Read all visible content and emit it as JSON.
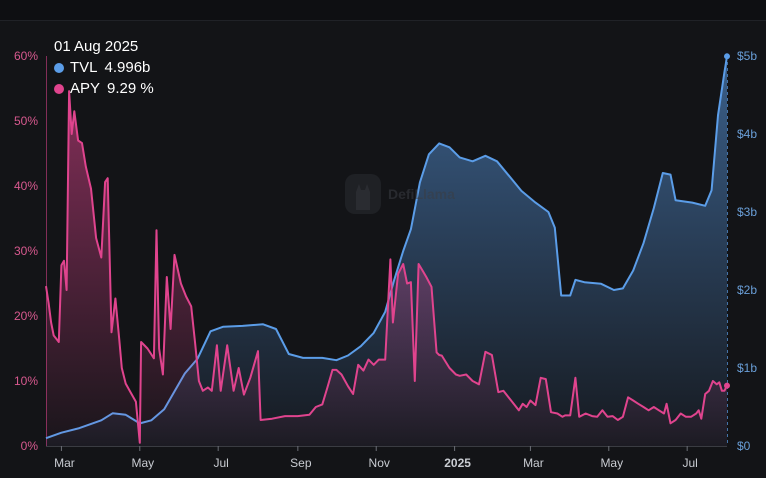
{
  "tooltip": {
    "date": "01 Aug 2025",
    "tvl_label": "TVL",
    "tvl_value": "4.996b",
    "apy_label": "APY",
    "apy_value": "9.29 %"
  },
  "watermark": {
    "text": "DefiLlama",
    "icon": "llama-logo-icon"
  },
  "colors": {
    "tvl": "#5b9de8",
    "apy": "#e0448e",
    "background": "#131417"
  },
  "chart_data": {
    "type": "line",
    "title": "",
    "x_ticks": [
      "Mar",
      "May",
      "Jul",
      "Sep",
      "Nov",
      "2025",
      "Mar",
      "May",
      "Jul"
    ],
    "y_left": {
      "series": "APY",
      "range": [
        0,
        60
      ],
      "ticks": [
        "0%",
        "10%",
        "20%",
        "30%",
        "40%",
        "50%",
        "60%"
      ]
    },
    "y_right": {
      "series": "TVL",
      "range": [
        0,
        5000000000
      ],
      "ticks": [
        "$0",
        "$1b",
        "$2b",
        "$3b",
        "$4b",
        "$5b"
      ]
    },
    "x_range": [
      "2024-02-18",
      "2025-08-01"
    ],
    "grid": false,
    "legend": "top-left",
    "series": [
      {
        "name": "TVL",
        "unit": "USD",
        "axis": "right",
        "style": "area",
        "points": [
          [
            "2024-02-18",
            100000000
          ],
          [
            "2024-03-01",
            170000000
          ],
          [
            "2024-03-15",
            230000000
          ],
          [
            "2024-04-01",
            330000000
          ],
          [
            "2024-04-10",
            420000000
          ],
          [
            "2024-04-20",
            400000000
          ],
          [
            "2024-05-01",
            290000000
          ],
          [
            "2024-05-10",
            330000000
          ],
          [
            "2024-05-20",
            470000000
          ],
          [
            "2024-05-28",
            700000000
          ],
          [
            "2024-06-05",
            930000000
          ],
          [
            "2024-06-15",
            1120000000
          ],
          [
            "2024-06-25",
            1470000000
          ],
          [
            "2024-07-05",
            1530000000
          ],
          [
            "2024-07-20",
            1540000000
          ],
          [
            "2024-08-05",
            1560000000
          ],
          [
            "2024-08-15",
            1500000000
          ],
          [
            "2024-08-25",
            1180000000
          ],
          [
            "2024-09-05",
            1130000000
          ],
          [
            "2024-09-20",
            1130000000
          ],
          [
            "2024-10-01",
            1100000000
          ],
          [
            "2024-10-10",
            1160000000
          ],
          [
            "2024-10-20",
            1280000000
          ],
          [
            "2024-10-30",
            1450000000
          ],
          [
            "2024-11-08",
            1720000000
          ],
          [
            "2024-11-15",
            2130000000
          ],
          [
            "2024-11-22",
            2500000000
          ],
          [
            "2024-11-28",
            2780000000
          ],
          [
            "2024-12-05",
            3380000000
          ],
          [
            "2024-12-12",
            3740000000
          ],
          [
            "2024-12-20",
            3880000000
          ],
          [
            "2024-12-28",
            3830000000
          ],
          [
            "2025-01-05",
            3700000000
          ],
          [
            "2025-01-15",
            3650000000
          ],
          [
            "2025-01-25",
            3720000000
          ],
          [
            "2025-02-03",
            3650000000
          ],
          [
            "2025-02-12",
            3470000000
          ],
          [
            "2025-02-22",
            3270000000
          ],
          [
            "2025-03-05",
            3120000000
          ],
          [
            "2025-03-15",
            3000000000
          ],
          [
            "2025-03-20",
            2800000000
          ],
          [
            "2025-03-25",
            1930000000
          ],
          [
            "2025-04-01",
            1930000000
          ],
          [
            "2025-04-05",
            2130000000
          ],
          [
            "2025-04-12",
            2100000000
          ],
          [
            "2025-04-25",
            2080000000
          ],
          [
            "2025-05-05",
            2000000000
          ],
          [
            "2025-05-12",
            2020000000
          ],
          [
            "2025-05-20",
            2250000000
          ],
          [
            "2025-05-28",
            2600000000
          ],
          [
            "2025-06-05",
            3050000000
          ],
          [
            "2025-06-12",
            3500000000
          ],
          [
            "2025-06-18",
            3480000000
          ],
          [
            "2025-06-22",
            3150000000
          ],
          [
            "2025-07-05",
            3120000000
          ],
          [
            "2025-07-15",
            3080000000
          ],
          [
            "2025-07-20",
            3280000000
          ],
          [
            "2025-07-25",
            4240000000
          ],
          [
            "2025-07-30",
            4790000000
          ],
          [
            "2025-08-01",
            4996000000
          ]
        ]
      },
      {
        "name": "APY",
        "unit": "%",
        "axis": "left",
        "style": "area",
        "points": [
          [
            "2024-02-18",
            24.6
          ],
          [
            "2024-02-20",
            22
          ],
          [
            "2024-02-22",
            19
          ],
          [
            "2024-02-24",
            17
          ],
          [
            "2024-02-26",
            16.5
          ],
          [
            "2024-02-28",
            16
          ],
          [
            "2024-03-01",
            27.8
          ],
          [
            "2024-03-03",
            28.5
          ],
          [
            "2024-03-05",
            24
          ],
          [
            "2024-03-07",
            54.6
          ],
          [
            "2024-03-09",
            48
          ],
          [
            "2024-03-11",
            51.5
          ],
          [
            "2024-03-14",
            47
          ],
          [
            "2024-03-17",
            46.6
          ],
          [
            "2024-03-20",
            43
          ],
          [
            "2024-03-24",
            39.6
          ],
          [
            "2024-03-28",
            32
          ],
          [
            "2024-04-01",
            29
          ],
          [
            "2024-04-04",
            40.6
          ],
          [
            "2024-04-06",
            41.2
          ],
          [
            "2024-04-09",
            17.5
          ],
          [
            "2024-04-12",
            22.7
          ],
          [
            "2024-04-15",
            16.5
          ],
          [
            "2024-04-17",
            12
          ],
          [
            "2024-04-20",
            9.6
          ],
          [
            "2024-04-24",
            8.2
          ],
          [
            "2024-04-28",
            6.8
          ],
          [
            "2024-05-01",
            0.5
          ],
          [
            "2024-05-02",
            16
          ],
          [
            "2024-05-07",
            15
          ],
          [
            "2024-05-12",
            13.5
          ],
          [
            "2024-05-14",
            33.2
          ],
          [
            "2024-05-16",
            15
          ],
          [
            "2024-05-19",
            11
          ],
          [
            "2024-05-22",
            26
          ],
          [
            "2024-05-25",
            18
          ],
          [
            "2024-05-28",
            29.4
          ],
          [
            "2024-06-02",
            25
          ],
          [
            "2024-06-06",
            23
          ],
          [
            "2024-06-10",
            21.5
          ],
          [
            "2024-06-13",
            16
          ],
          [
            "2024-06-16",
            10
          ],
          [
            "2024-06-19",
            8.5
          ],
          [
            "2024-06-23",
            9
          ],
          [
            "2024-06-26",
            8.5
          ],
          [
            "2024-06-30",
            15.5
          ],
          [
            "2024-07-03",
            8.5
          ],
          [
            "2024-07-08",
            15.5
          ],
          [
            "2024-07-13",
            8.5
          ],
          [
            "2024-07-17",
            12
          ],
          [
            "2024-07-21",
            7.9
          ],
          [
            "2024-07-26",
            10.5
          ],
          [
            "2024-08-01",
            14.6
          ],
          [
            "2024-08-03",
            4
          ],
          [
            "2024-08-12",
            4.2
          ],
          [
            "2024-08-22",
            4.6
          ],
          [
            "2024-09-01",
            4.6
          ],
          [
            "2024-09-10",
            4.8
          ],
          [
            "2024-09-15",
            6
          ],
          [
            "2024-09-20",
            6.4
          ],
          [
            "2024-09-24",
            9
          ],
          [
            "2024-09-28",
            11.7
          ],
          [
            "2024-10-01",
            11.7
          ],
          [
            "2024-10-05",
            11
          ],
          [
            "2024-10-10",
            9.2
          ],
          [
            "2024-10-14",
            8
          ],
          [
            "2024-10-18",
            12.5
          ],
          [
            "2024-10-22",
            11.6
          ],
          [
            "2024-10-26",
            13.3
          ],
          [
            "2024-10-30",
            12.5
          ],
          [
            "2024-11-03",
            13.3
          ],
          [
            "2024-11-08",
            13.3
          ],
          [
            "2024-11-12",
            28.7
          ],
          [
            "2024-11-14",
            19
          ],
          [
            "2024-11-18",
            26.5
          ],
          [
            "2024-11-22",
            28
          ],
          [
            "2024-11-25",
            25
          ],
          [
            "2024-11-28",
            25.2
          ],
          [
            "2024-12-01",
            10
          ],
          [
            "2024-12-04",
            28
          ],
          [
            "2024-12-07",
            27
          ],
          [
            "2024-12-10",
            26
          ],
          [
            "2024-12-14",
            24.5
          ],
          [
            "2024-12-18",
            14.4
          ],
          [
            "2024-12-20",
            14
          ],
          [
            "2024-12-22",
            13.9
          ],
          [
            "2024-12-28",
            12
          ],
          [
            "2025-01-02",
            11
          ],
          [
            "2025-01-05",
            10.8
          ],
          [
            "2025-01-10",
            11
          ],
          [
            "2025-01-15",
            10
          ],
          [
            "2025-01-20",
            9.5
          ],
          [
            "2025-01-25",
            14.5
          ],
          [
            "2025-01-30",
            14
          ],
          [
            "2025-02-04",
            8.3
          ],
          [
            "2025-02-08",
            8.5
          ],
          [
            "2025-02-14",
            7
          ],
          [
            "2025-02-20",
            5.5
          ],
          [
            "2025-02-23",
            6.5
          ],
          [
            "2025-02-26",
            6
          ],
          [
            "2025-03-01",
            7
          ],
          [
            "2025-03-05",
            6.3
          ],
          [
            "2025-03-09",
            10.5
          ],
          [
            "2025-03-13",
            10.3
          ],
          [
            "2025-03-17",
            5.2
          ],
          [
            "2025-03-22",
            5
          ],
          [
            "2025-03-26",
            4.5
          ],
          [
            "2025-03-28",
            4.7
          ],
          [
            "2025-04-01",
            4.7
          ],
          [
            "2025-04-05",
            10.5
          ],
          [
            "2025-04-08",
            4.5
          ],
          [
            "2025-04-13",
            5
          ],
          [
            "2025-04-18",
            4.6
          ],
          [
            "2025-04-22",
            4.5
          ],
          [
            "2025-04-26",
            5.5
          ],
          [
            "2025-04-30",
            4.5
          ],
          [
            "2025-05-04",
            4.6
          ],
          [
            "2025-05-08",
            4
          ],
          [
            "2025-05-12",
            4.5
          ],
          [
            "2025-05-16",
            7.5
          ],
          [
            "2025-05-20",
            7
          ],
          [
            "2025-05-24",
            6.5
          ],
          [
            "2025-05-28",
            6
          ],
          [
            "2025-06-01",
            5.5
          ],
          [
            "2025-06-05",
            6
          ],
          [
            "2025-06-09",
            5.5
          ],
          [
            "2025-06-13",
            5
          ],
          [
            "2025-06-15",
            6.5
          ],
          [
            "2025-06-18",
            3.5
          ],
          [
            "2025-06-22",
            4
          ],
          [
            "2025-06-26",
            5
          ],
          [
            "2025-06-30",
            4.5
          ],
          [
            "2025-07-04",
            4.5
          ],
          [
            "2025-07-08",
            5
          ],
          [
            "2025-07-10",
            5.5
          ],
          [
            "2025-07-12",
            4.2
          ],
          [
            "2025-07-15",
            8
          ],
          [
            "2025-07-18",
            8.5
          ],
          [
            "2025-07-21",
            10
          ],
          [
            "2025-07-24",
            9.5
          ],
          [
            "2025-07-26",
            9.8
          ],
          [
            "2025-07-28",
            8.5
          ],
          [
            "2025-07-30",
            8.5
          ],
          [
            "2025-08-01",
            9.29
          ]
        ]
      }
    ]
  }
}
